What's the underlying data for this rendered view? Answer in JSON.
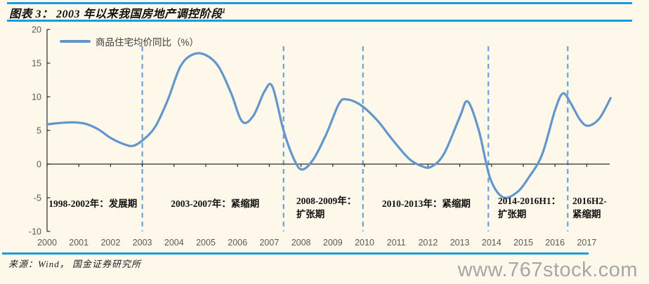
{
  "title": {
    "text": "图表 3： 2003 年以来我国房地产调控阶段",
    "superscript": "1"
  },
  "footer": {
    "source": "来源：Wind， 国金证券研究所"
  },
  "watermark": "www.767stock.com",
  "colors": {
    "background": "#fdf8ea",
    "accent_rule": "#149edd",
    "line": "#6396cc",
    "divider": "#6ba0d8",
    "axis": "#2b2b2b",
    "tick_label": "#595959",
    "watermark": "#a6a6a6"
  },
  "chart_data": {
    "type": "line",
    "title": "商品住宅均价同比（%）",
    "legend": {
      "label": "商品住宅均价同比（%）",
      "position": "top-left"
    },
    "xlabel": "",
    "ylabel": "",
    "xlim": [
      2000,
      2017.9
    ],
    "ylim": [
      -10,
      20
    ],
    "grid": false,
    "x_ticks": [
      2000,
      2001,
      2002,
      2003,
      2004,
      2005,
      2006,
      2007,
      2008,
      2009,
      2010,
      2011,
      2012,
      2013,
      2014,
      2015,
      2016,
      2017
    ],
    "y_ticks": [
      20,
      15,
      10,
      5,
      0,
      -5,
      -10
    ],
    "series": [
      {
        "name": "商品住宅均价同比（%）",
        "points": [
          [
            2000.0,
            5.9
          ],
          [
            2000.4,
            6.1
          ],
          [
            2000.8,
            6.2
          ],
          [
            2001.2,
            6.0
          ],
          [
            2001.6,
            5.2
          ],
          [
            2002.0,
            3.9
          ],
          [
            2002.4,
            3.0
          ],
          [
            2002.7,
            2.7
          ],
          [
            2003.0,
            3.5
          ],
          [
            2003.4,
            5.5
          ],
          [
            2003.8,
            9.5
          ],
          [
            2004.2,
            14.5
          ],
          [
            2004.6,
            16.3
          ],
          [
            2005.0,
            16.2
          ],
          [
            2005.4,
            14.5
          ],
          [
            2005.8,
            10.5
          ],
          [
            2006.15,
            6.3
          ],
          [
            2006.5,
            7.2
          ],
          [
            2006.85,
            10.8
          ],
          [
            2007.1,
            11.5
          ],
          [
            2007.45,
            5.0
          ],
          [
            2007.8,
            0.5
          ],
          [
            2008.05,
            -0.8
          ],
          [
            2008.4,
            0.8
          ],
          [
            2008.8,
            4.5
          ],
          [
            2009.2,
            9.0
          ],
          [
            2009.45,
            9.6
          ],
          [
            2009.9,
            8.7
          ],
          [
            2010.4,
            6.5
          ],
          [
            2010.9,
            3.5
          ],
          [
            2011.4,
            0.8
          ],
          [
            2011.8,
            -0.3
          ],
          [
            2012.1,
            -0.4
          ],
          [
            2012.5,
            1.5
          ],
          [
            2013.0,
            7.0
          ],
          [
            2013.25,
            9.3
          ],
          [
            2013.6,
            5.0
          ],
          [
            2013.95,
            -2.0
          ],
          [
            2014.35,
            -4.9
          ],
          [
            2014.8,
            -4.2
          ],
          [
            2015.2,
            -1.8
          ],
          [
            2015.6,
            1.5
          ],
          [
            2016.0,
            8.0
          ],
          [
            2016.25,
            10.5
          ],
          [
            2016.5,
            9.0
          ],
          [
            2016.8,
            6.5
          ],
          [
            2017.05,
            5.7
          ],
          [
            2017.4,
            6.8
          ],
          [
            2017.75,
            9.8
          ]
        ]
      }
    ],
    "phase_dividers": {
      "style": "dashed",
      "years": [
        2003,
        2007.45,
        2009.95,
        2013.9,
        2016.4
      ]
    },
    "annotations": [
      {
        "x_year": 2000.05,
        "text": "1998-2002年：发展期"
      },
      {
        "x_year": 2003.9,
        "text": "2003-2007年：紧缩期"
      },
      {
        "x_year": 2007.85,
        "text": "2008-2009年：\n扩张期"
      },
      {
        "x_year": 2010.55,
        "text": "2010-2013年：紧缩期"
      },
      {
        "x_year": 2014.2,
        "text": "2014-2016H1：\n扩张期"
      },
      {
        "x_year": 2016.55,
        "text": "2016H2-\n紧缩期"
      }
    ]
  }
}
